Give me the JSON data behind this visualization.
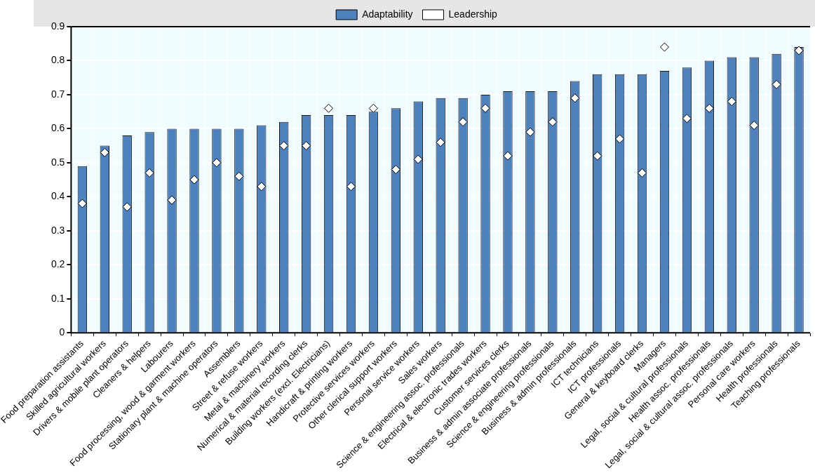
{
  "chart_data": {
    "type": "bar",
    "categories": [
      "Food preparation assistants",
      "Skilled agricultural workers",
      "Drivers & mobile plant operators",
      "Cleaners & helpers",
      "Labourers",
      "Food processing, wood & garment workers",
      "Stationary plant & machine operators",
      "Assemblers",
      "Street & refuse workers",
      "Metal & machinery workers",
      "Numerical & material recording clerks",
      "Building workers (excl. Electricians)",
      "Handicraft & printing workers",
      "Protective services workers",
      "Other clerical support workers",
      "Personal service workers",
      "Sales workers",
      "Science & engineering assoc. professionals",
      "Electrical & electronic trades workers",
      "Customer services clerks",
      "Business & admin associate professionals",
      "Science & engineering professionals",
      "Business & admin professionals",
      "ICT technicians",
      "ICT professionals",
      "General & keyboard clerks",
      "Managers",
      "Legal, social & cultural professionals",
      "Health assoc. professionals",
      "Legal, social & cultural assoc. professionals",
      "Personal care workers",
      "Health professionals",
      "Teaching professionals"
    ],
    "series": [
      {
        "name": "Adaptability",
        "color": "#4f81bd",
        "values": [
          0.49,
          0.55,
          0.58,
          0.59,
          0.6,
          0.6,
          0.6,
          0.6,
          0.61,
          0.62,
          0.64,
          0.64,
          0.64,
          0.65,
          0.66,
          0.68,
          0.69,
          0.69,
          0.7,
          0.71,
          0.71,
          0.71,
          0.74,
          0.76,
          0.76,
          0.76,
          0.77,
          0.78,
          0.8,
          0.81,
          0.81,
          0.82,
          0.84
        ]
      },
      {
        "name": "Leadership",
        "type": "scatter",
        "color": "#ffffff",
        "marker": "diamond",
        "values": [
          0.38,
          0.53,
          0.37,
          0.47,
          0.39,
          0.45,
          0.5,
          0.46,
          0.43,
          0.55,
          0.55,
          0.66,
          0.43,
          0.66,
          0.48,
          0.51,
          0.56,
          0.62,
          0.66,
          0.52,
          0.59,
          0.62,
          0.69,
          0.52,
          0.57,
          0.47,
          0.84,
          0.63,
          0.66,
          0.68,
          0.61,
          0.73,
          0.83
        ]
      }
    ],
    "ylim": [
      0,
      0.9
    ],
    "yticks": [
      0,
      0.1,
      0.2,
      0.3,
      0.4,
      0.5,
      0.6,
      0.7,
      0.8,
      0.9
    ],
    "grid": true,
    "legend": "top"
  }
}
